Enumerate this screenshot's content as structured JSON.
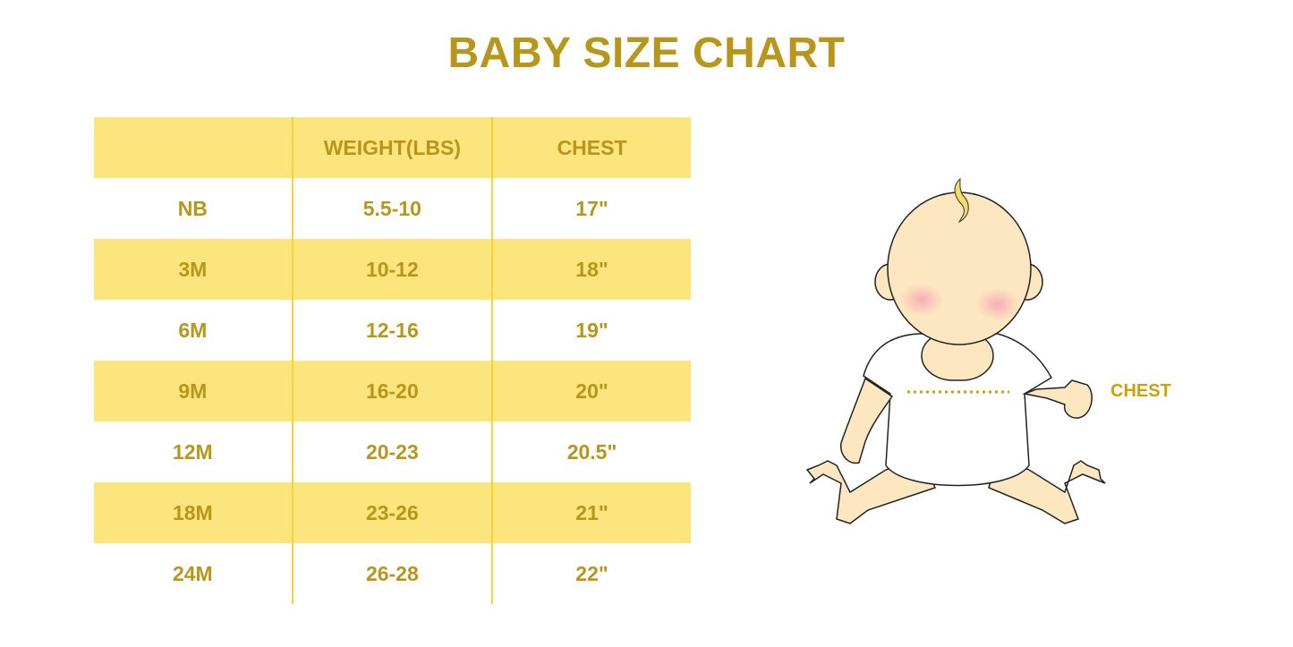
{
  "title": "BABY SIZE CHART",
  "table": {
    "headers": [
      "",
      "WEIGHT(LBS)",
      "CHEST"
    ],
    "rows": [
      [
        "NB",
        "5.5-10",
        "17\""
      ],
      [
        "3M",
        "10-12",
        "18\""
      ],
      [
        "6M",
        "12-16",
        "19\""
      ],
      [
        "9M",
        "16-20",
        "20\""
      ],
      [
        "12M",
        "20-23",
        "20.5\""
      ],
      [
        "18M",
        "23-26",
        "21\""
      ],
      [
        "24M",
        "26-28",
        "22\""
      ]
    ]
  },
  "illustration": {
    "label": "CHEST"
  },
  "colors": {
    "text": "#b8961c",
    "band": "#fbe57c",
    "divider": "#f9d236",
    "skin": "#fde7c1"
  }
}
